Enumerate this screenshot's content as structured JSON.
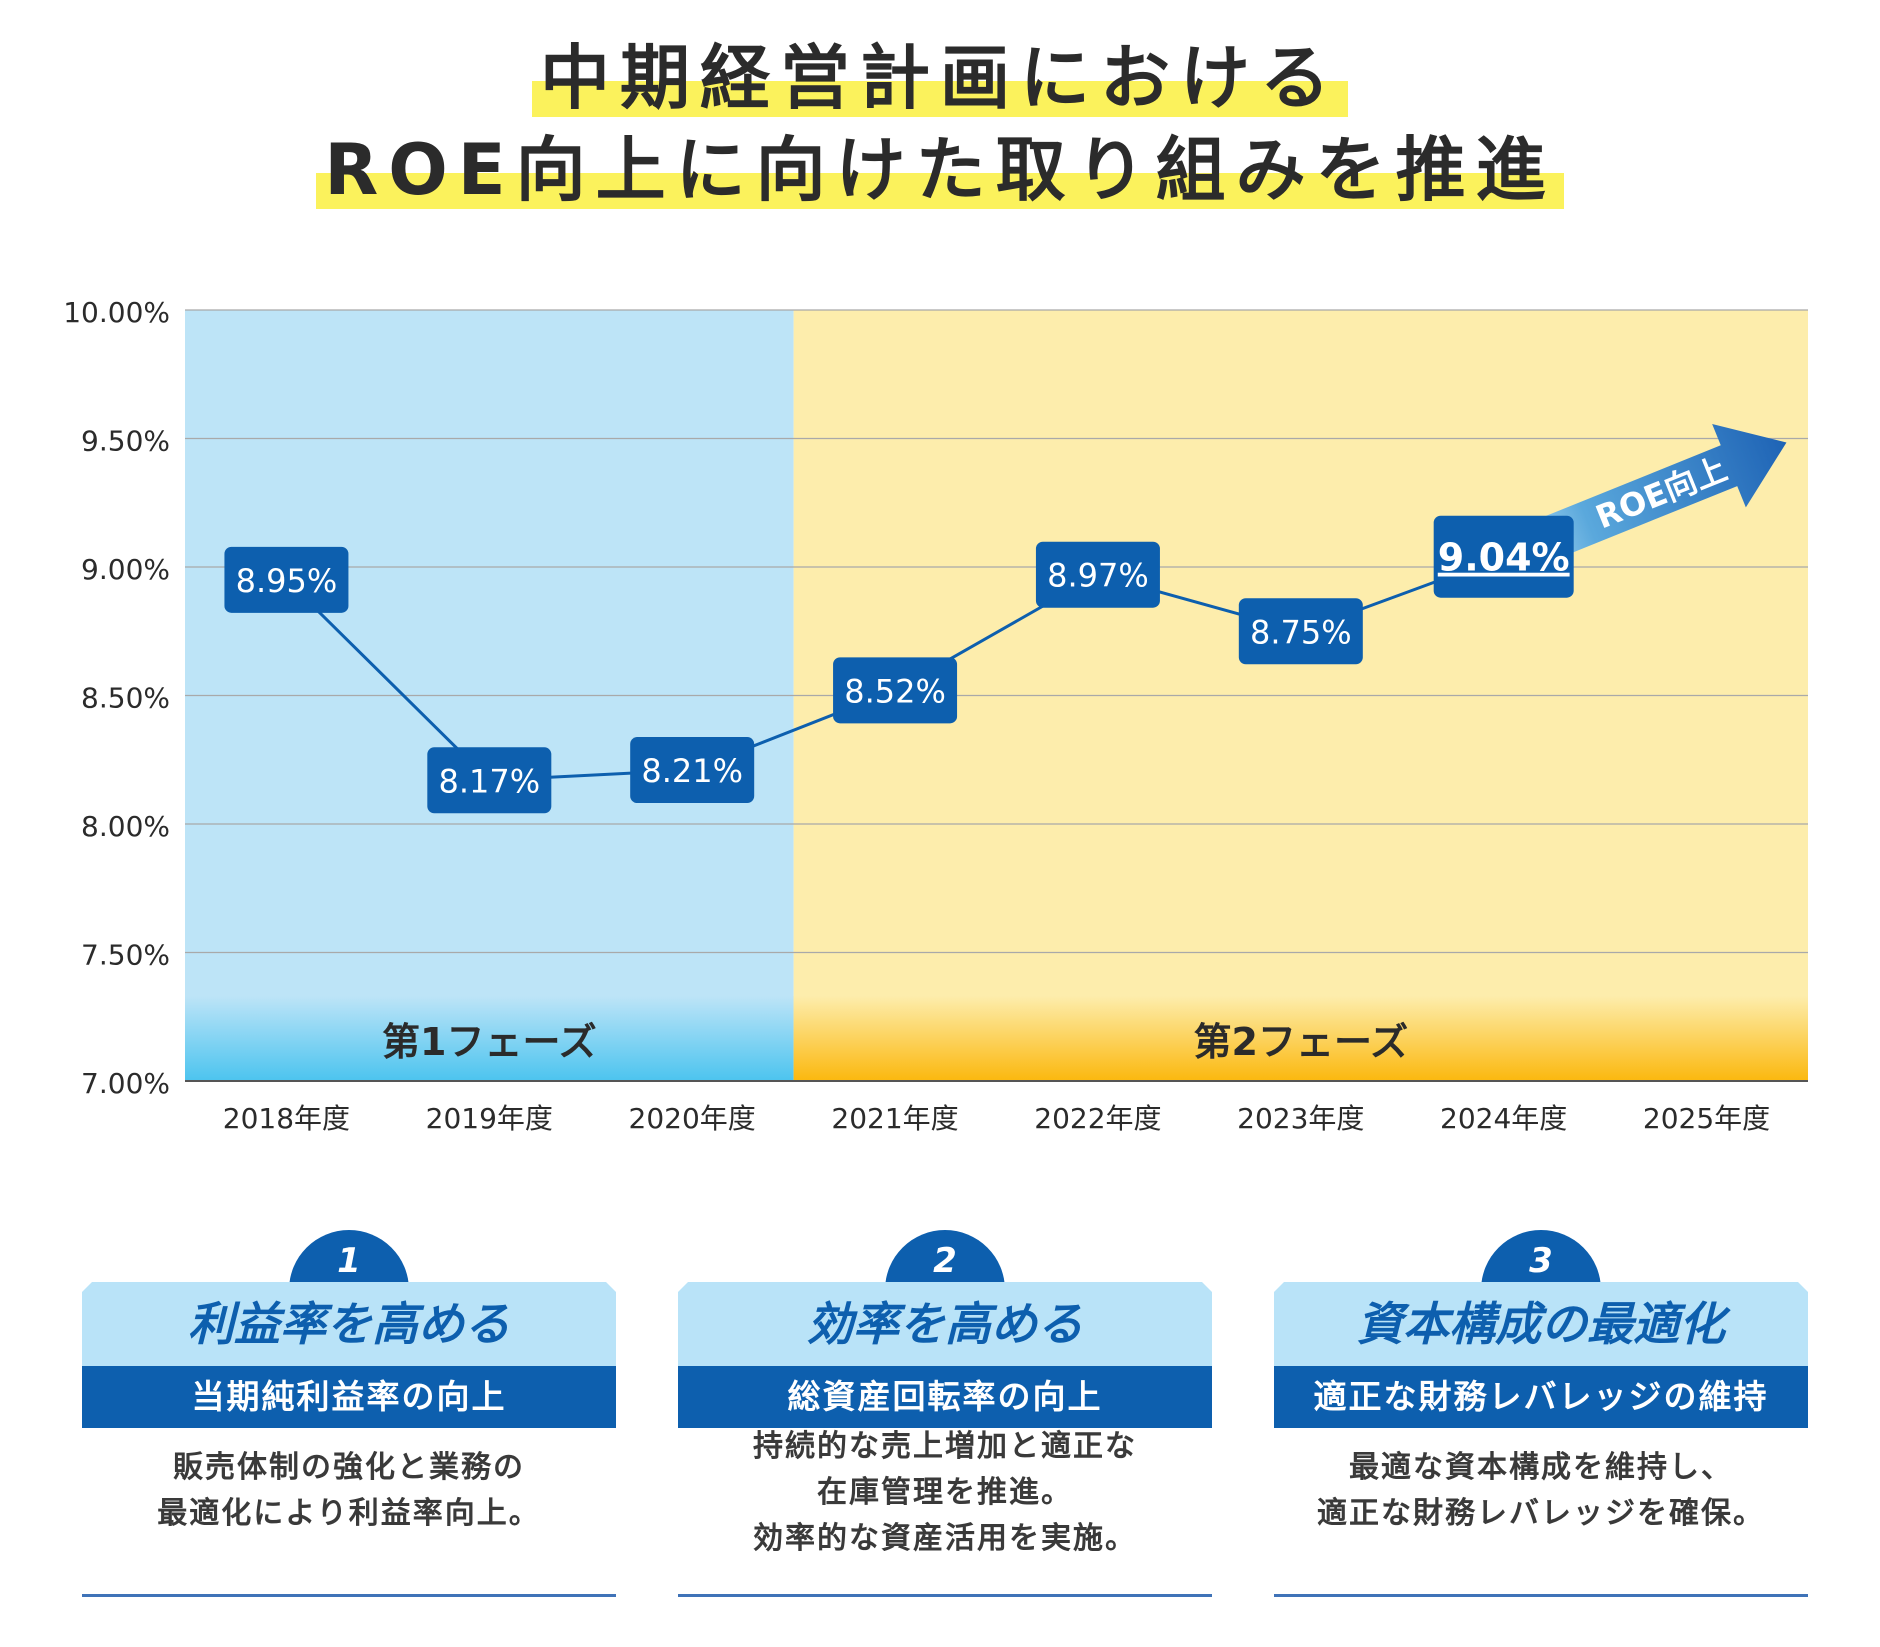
{
  "title": {
    "line1": "中期経営計画における",
    "line2": "ROE向上に向けた取り組みを推進"
  },
  "chart_data": {
    "type": "line",
    "categories": [
      "2018年度",
      "2019年度",
      "2020年度",
      "2021年度",
      "2022年度",
      "2023年度",
      "2024年度",
      "2025年度"
    ],
    "series": [
      {
        "values": [
          8.95,
          8.17,
          8.21,
          8.52,
          8.97,
          8.75,
          9.04,
          null
        ]
      }
    ],
    "data_labels": [
      "8.95%",
      "8.17%",
      "8.21%",
      "8.52%",
      "8.97%",
      "8.75%",
      "9.04%",
      ""
    ],
    "yticks": [
      "10.00%",
      "9.50%",
      "9.00%",
      "8.50%",
      "8.00%",
      "7.50%",
      "7.00%"
    ],
    "ylim": [
      7.0,
      10.0
    ],
    "grid": true,
    "phases": [
      {
        "label": "第1フェーズ",
        "from": "2018年度",
        "to": "2020年度",
        "color": "#bde4f7",
        "band_color": "#4cc4ef"
      },
      {
        "label": "第2フェーズ",
        "from": "2021年度",
        "to": "2025年度",
        "color": "#fdedac",
        "band_color": "#fbb80e"
      }
    ],
    "arrow_label": "ROE向上",
    "colors": {
      "marker": "#0d5fae",
      "line": "#0d5fae",
      "arrow": "#1e63b5"
    }
  },
  "pillars": [
    {
      "number": "1",
      "heading": "利益率を高める",
      "subheading": "当期純利益率の向上",
      "desc": [
        "販売体制の強化と業務の",
        "最適化により利益率向上。"
      ]
    },
    {
      "number": "2",
      "heading": "効率を高める",
      "subheading": "総資産回転率の向上",
      "desc": [
        "持続的な売上増加と適正な",
        "在庫管理を推進。",
        "効率的な資産活用を実施。"
      ]
    },
    {
      "number": "3",
      "heading": "資本構成の最適化",
      "subheading": "適正な財務レバレッジの維持",
      "desc": [
        "最適な資本構成を維持し、",
        "適正な財務レバレッジを確保。"
      ]
    }
  ]
}
